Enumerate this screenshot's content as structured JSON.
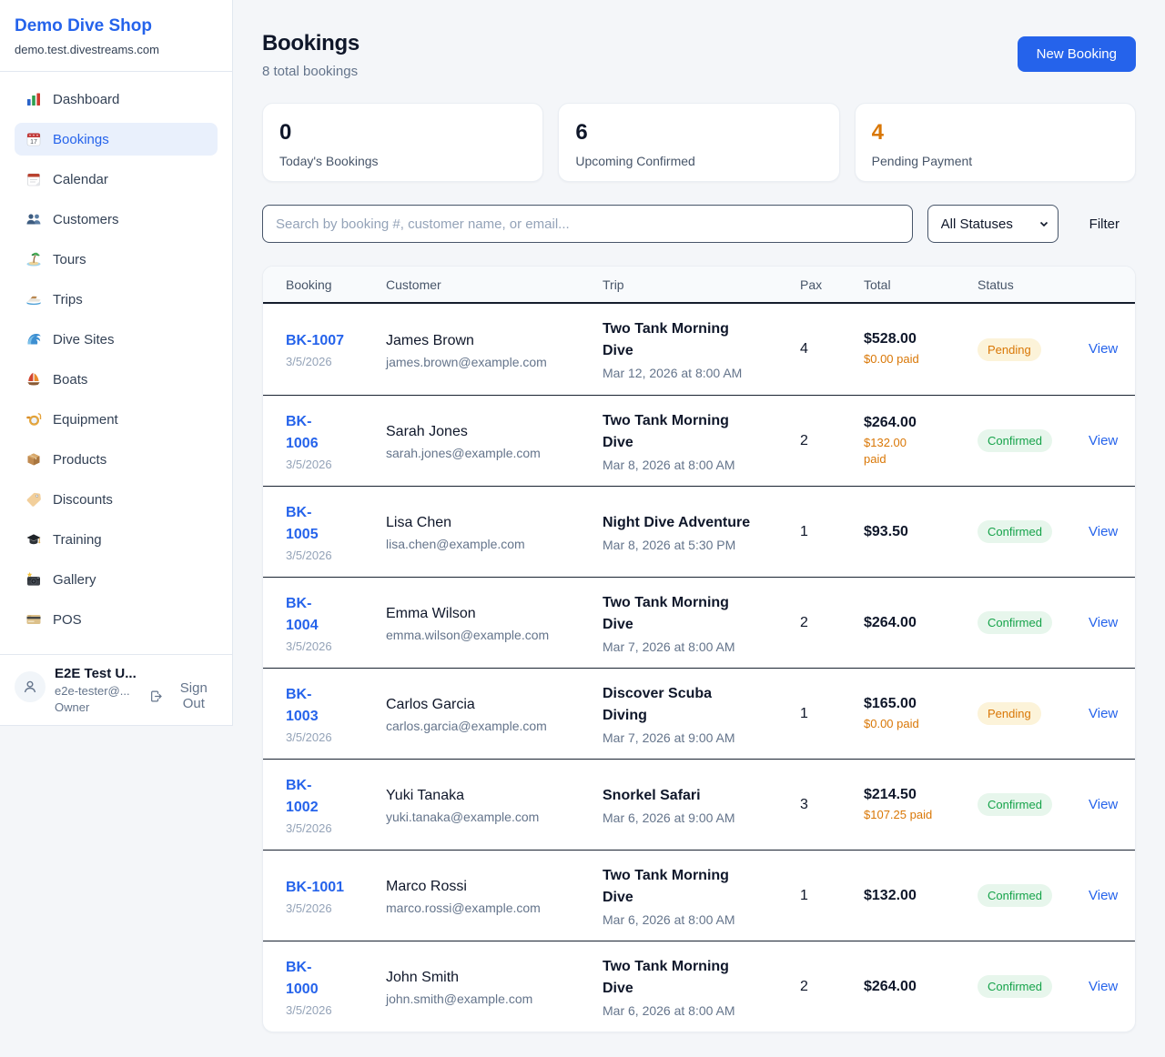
{
  "sidebar": {
    "title": "Demo Dive Shop",
    "domain": "demo.test.divestreams.com",
    "items": [
      {
        "label": "Dashboard",
        "icon": "bar-chart",
        "active": false
      },
      {
        "label": "Bookings",
        "icon": "bookings-calendar",
        "active": true
      },
      {
        "label": "Calendar",
        "icon": "calendar",
        "active": false
      },
      {
        "label": "Customers",
        "icon": "customers",
        "active": false
      },
      {
        "label": "Tours",
        "icon": "island",
        "active": false
      },
      {
        "label": "Trips",
        "icon": "speedboat",
        "active": false
      },
      {
        "label": "Dive Sites",
        "icon": "wave",
        "active": false
      },
      {
        "label": "Boats",
        "icon": "sailboat",
        "active": false
      },
      {
        "label": "Equipment",
        "icon": "diving-mask",
        "active": false
      },
      {
        "label": "Products",
        "icon": "package",
        "active": false
      },
      {
        "label": "Discounts",
        "icon": "tag",
        "active": false
      },
      {
        "label": "Training",
        "icon": "graduation-cap",
        "active": false
      },
      {
        "label": "Gallery",
        "icon": "camera",
        "active": false
      },
      {
        "label": "POS",
        "icon": "credit-card",
        "active": false
      }
    ],
    "user": {
      "name": "E2E Test U...",
      "email": "e2e-tester@...",
      "role": "Owner",
      "sign_out": "Sign Out"
    }
  },
  "header": {
    "title": "Bookings",
    "subtitle": "8 total bookings",
    "new_booking_label": "New Booking"
  },
  "stats": [
    {
      "value": "0",
      "label": "Today's Bookings",
      "value_color": "#0f172a"
    },
    {
      "value": "6",
      "label": "Upcoming Confirmed",
      "value_color": "#0f172a"
    },
    {
      "value": "4",
      "label": "Pending Payment",
      "value_color": "#d97706"
    }
  ],
  "filters": {
    "search_placeholder": "Search by booking #, customer name, or email...",
    "status_selected": "All Statuses",
    "filter_label": "Filter"
  },
  "table": {
    "columns": [
      "Booking",
      "Customer",
      "Trip",
      "Pax",
      "Total",
      "Status"
    ],
    "view_label": "View",
    "rows": [
      {
        "id": "BK-1007",
        "booked_date": "3/5/2026",
        "customer": "James Brown",
        "email": "james.brown@example.com",
        "trip": "Two Tank Morning\nDive",
        "trip_datetime": "Mar 12, 2026 at 8:00 AM",
        "pax": "4",
        "total": "$528.00",
        "paid": "$0.00 paid",
        "status": "Pending"
      },
      {
        "id": "BK-\n1006",
        "booked_date": "3/5/2026",
        "customer": "Sarah Jones",
        "email": "sarah.jones@example.com",
        "trip": "Two Tank Morning\nDive",
        "trip_datetime": "Mar 8, 2026 at 8:00 AM",
        "pax": "2",
        "total": "$264.00",
        "paid": "$132.00\npaid",
        "status": "Confirmed"
      },
      {
        "id": "BK-\n1005",
        "booked_date": "3/5/2026",
        "customer": "Lisa Chen",
        "email": "lisa.chen@example.com",
        "trip": "Night Dive Adventure",
        "trip_datetime": "Mar 8, 2026 at 5:30 PM",
        "pax": "1",
        "total": "$93.50",
        "paid": null,
        "status": "Confirmed"
      },
      {
        "id": "BK-\n1004",
        "booked_date": "3/5/2026",
        "customer": "Emma Wilson",
        "email": "emma.wilson@example.com",
        "trip": "Two Tank Morning\nDive",
        "trip_datetime": "Mar 7, 2026 at 8:00 AM",
        "pax": "2",
        "total": "$264.00",
        "paid": null,
        "status": "Confirmed"
      },
      {
        "id": "BK-\n1003",
        "booked_date": "3/5/2026",
        "customer": "Carlos Garcia",
        "email": "carlos.garcia@example.com",
        "trip": "Discover Scuba\nDiving",
        "trip_datetime": "Mar 7, 2026 at 9:00 AM",
        "pax": "1",
        "total": "$165.00",
        "paid": "$0.00 paid",
        "status": "Pending"
      },
      {
        "id": "BK-\n1002",
        "booked_date": "3/5/2026",
        "customer": "Yuki Tanaka",
        "email": "yuki.tanaka@example.com",
        "trip": "Snorkel Safari",
        "trip_datetime": "Mar 6, 2026 at 9:00 AM",
        "pax": "3",
        "total": "$214.50",
        "paid": "$107.25 paid",
        "status": "Confirmed"
      },
      {
        "id": "BK-1001",
        "booked_date": "3/5/2026",
        "customer": "Marco Rossi",
        "email": "marco.rossi@example.com",
        "trip": "Two Tank Morning\nDive",
        "trip_datetime": "Mar 6, 2026 at 8:00 AM",
        "pax": "1",
        "total": "$132.00",
        "paid": null,
        "status": "Confirmed"
      },
      {
        "id": "BK-\n1000",
        "booked_date": "3/5/2026",
        "customer": "John Smith",
        "email": "john.smith@example.com",
        "trip": "Two Tank Morning\nDive",
        "trip_datetime": "Mar 6, 2026 at 8:00 AM",
        "pax": "2",
        "total": "$264.00",
        "paid": null,
        "status": "Confirmed"
      }
    ]
  },
  "colors": {
    "primary_blue": "#2563eb",
    "pending_text": "#d97706",
    "pending_bg": "#fcf3d9",
    "confirmed_text": "#16a34a",
    "confirmed_bg": "#e7f6ec"
  }
}
